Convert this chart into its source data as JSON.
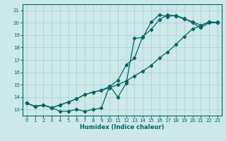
{
  "xlabel": "Humidex (Indice chaleur)",
  "bg_color": "#cce8e8",
  "grid_color": "#aacccc",
  "line_color": "#006666",
  "xlim": [
    -0.5,
    23.5
  ],
  "ylim": [
    12.5,
    21.5
  ],
  "xticks": [
    0,
    1,
    2,
    3,
    4,
    5,
    6,
    7,
    8,
    9,
    10,
    11,
    12,
    13,
    14,
    15,
    16,
    17,
    18,
    19,
    20,
    21,
    22,
    23
  ],
  "yticks": [
    13,
    14,
    15,
    16,
    17,
    18,
    19,
    20,
    21
  ],
  "line1_x": [
    0,
    1,
    2,
    3,
    4,
    5,
    6,
    7,
    8,
    9,
    10,
    11,
    12,
    13,
    14,
    15,
    16,
    17,
    18,
    19,
    20,
    21,
    22,
    23
  ],
  "line1_y": [
    13.5,
    13.25,
    13.35,
    13.15,
    12.85,
    12.85,
    13.0,
    12.85,
    13.0,
    13.1,
    14.9,
    14.0,
    15.1,
    18.75,
    18.8,
    20.05,
    20.65,
    20.5,
    20.6,
    20.35,
    20.0,
    19.6,
    20.0,
    20.0
  ],
  "line2_x": [
    0,
    1,
    2,
    3,
    4,
    5,
    6,
    7,
    8,
    9,
    10,
    11,
    12,
    13,
    14,
    15,
    16,
    17,
    18,
    19,
    20,
    21,
    22,
    23
  ],
  "line2_y": [
    13.5,
    13.25,
    13.35,
    13.15,
    13.35,
    13.6,
    13.85,
    14.2,
    14.4,
    14.55,
    14.75,
    15.0,
    15.3,
    15.7,
    16.1,
    16.55,
    17.15,
    17.65,
    18.25,
    18.9,
    19.5,
    19.75,
    20.1,
    20.0
  ],
  "line3_x": [
    0,
    1,
    2,
    3,
    4,
    5,
    6,
    7,
    8,
    9,
    10,
    11,
    12,
    13,
    14,
    15,
    16,
    17,
    18,
    19,
    20,
    21,
    22,
    23
  ],
  "line3_y": [
    13.5,
    13.25,
    13.35,
    13.15,
    13.35,
    13.6,
    13.85,
    14.2,
    14.4,
    14.55,
    14.85,
    15.35,
    16.6,
    17.15,
    18.9,
    19.45,
    20.25,
    20.65,
    20.55,
    20.3,
    20.1,
    19.8,
    20.05,
    20.05
  ]
}
